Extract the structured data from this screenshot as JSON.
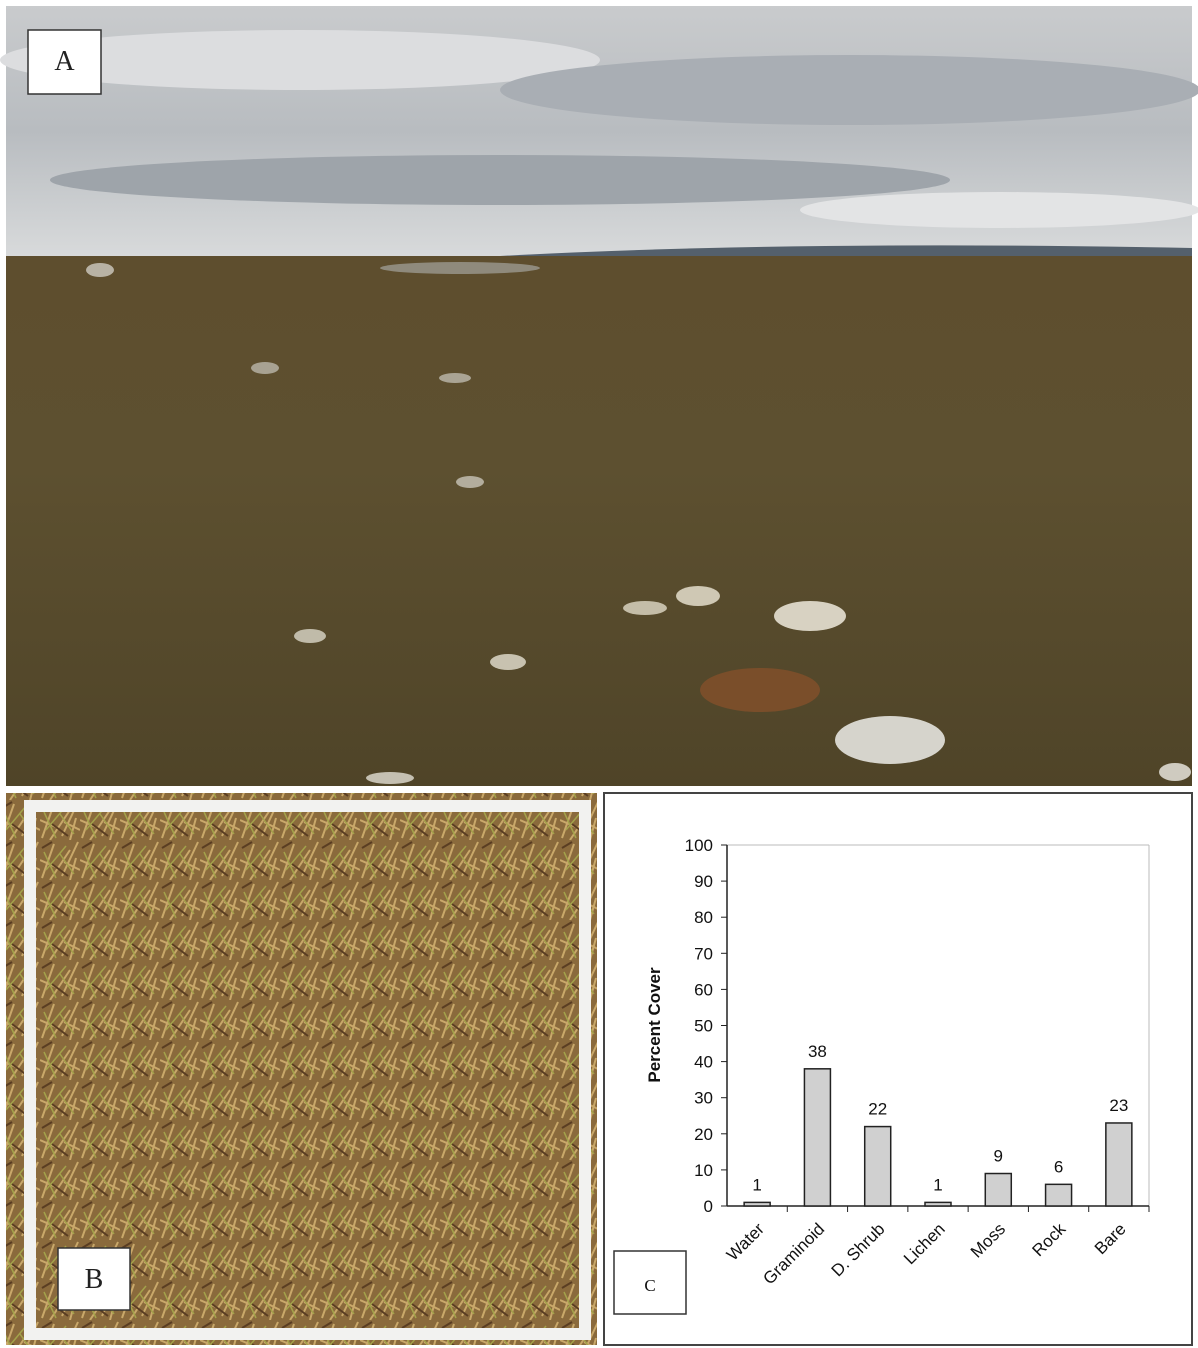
{
  "panels": {
    "a": "A",
    "b": "B",
    "c": "C"
  },
  "chart_data": {
    "type": "bar",
    "y_label": "Percent Cover",
    "categories": [
      "Water",
      "Graminoid",
      "D. Shrub",
      "Lichen",
      "Moss",
      "Rock",
      "Bare"
    ],
    "values": [
      1,
      38,
      22,
      1,
      9,
      6,
      23
    ],
    "color": "#d0d0d0",
    "ylim": [
      0,
      100
    ],
    "yticks": [
      0,
      10,
      20,
      30,
      40,
      50,
      60,
      70,
      80,
      90,
      100
    ],
    "grid": false
  }
}
